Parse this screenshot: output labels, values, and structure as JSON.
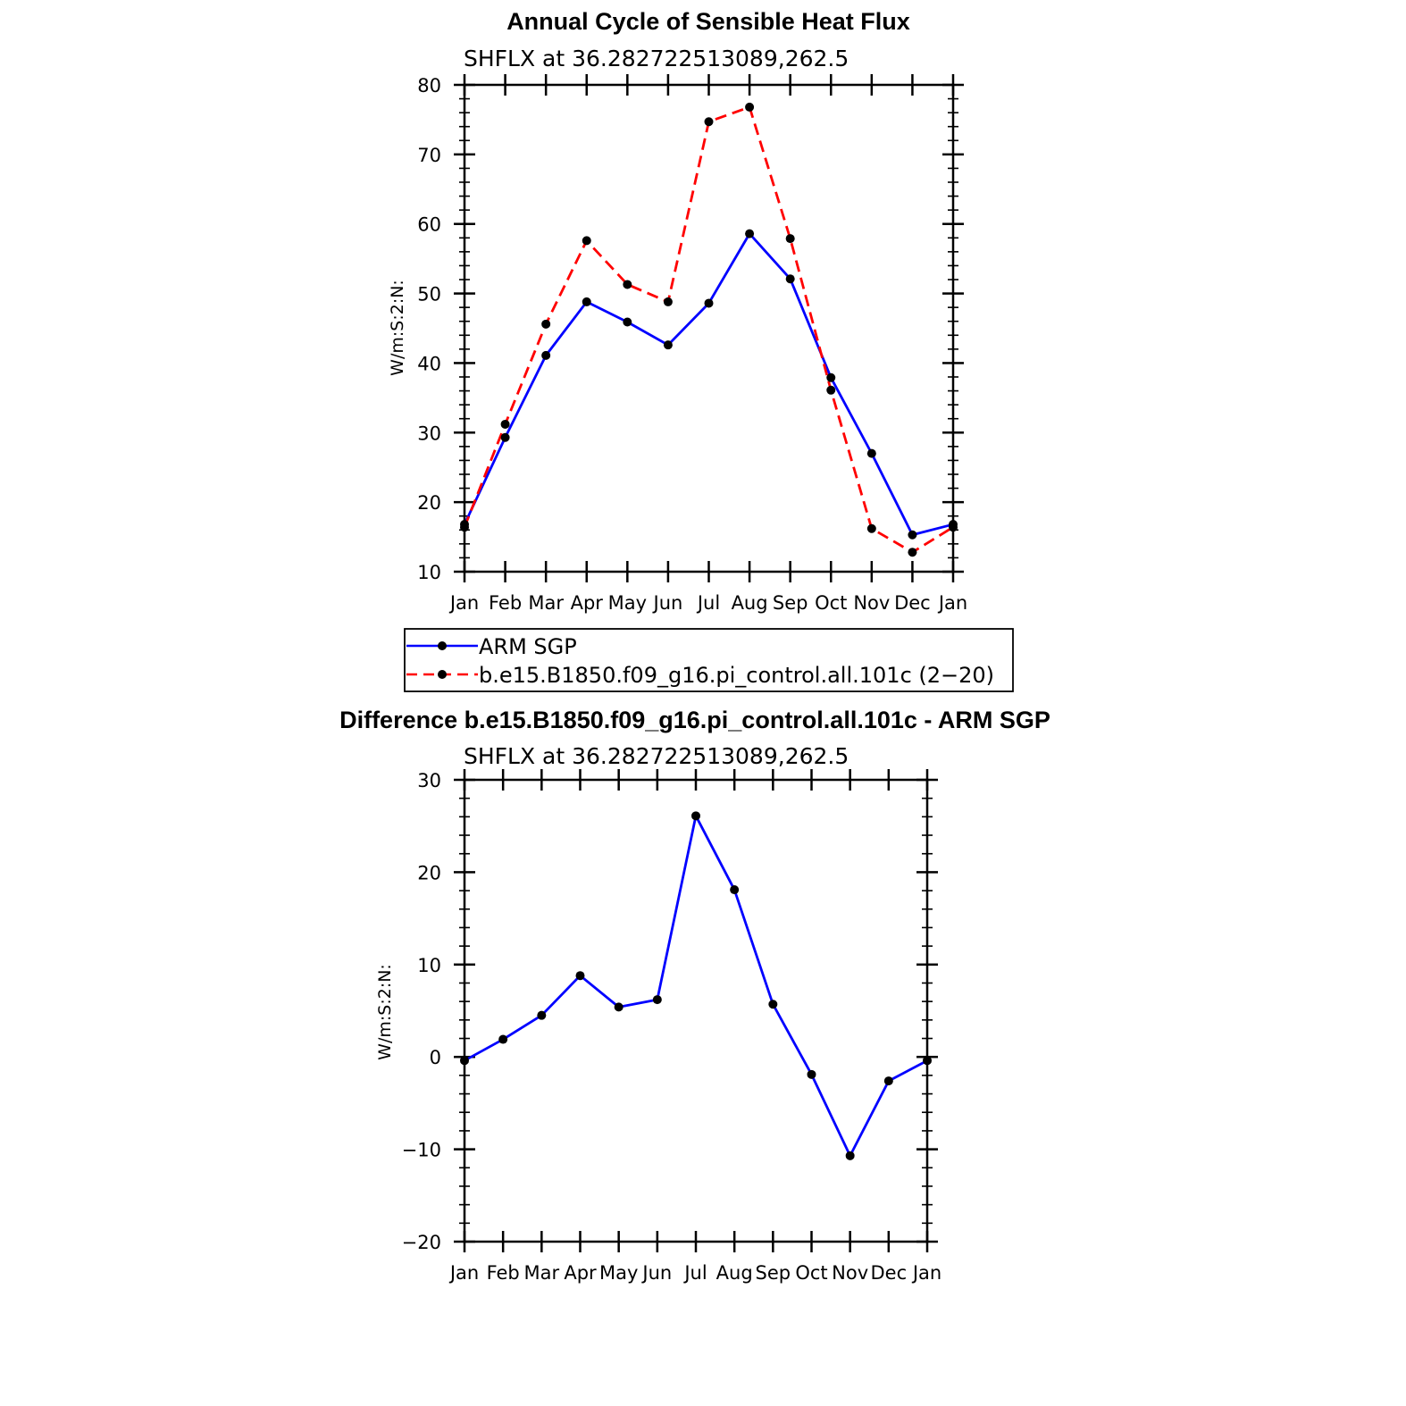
{
  "chart_data": [
    {
      "type": "line",
      "title": "Annual Cycle of Sensible Heat Flux",
      "subtitle": "SHFLX at 36.282722513089,262.5",
      "ylabel": "W/m:S:2:N:",
      "xlabel": "",
      "categories": [
        "Jan",
        "Feb",
        "Mar",
        "Apr",
        "May",
        "Jun",
        "Jul",
        "Aug",
        "Sep",
        "Oct",
        "Nov",
        "Dec",
        "Jan"
      ],
      "yticks": [
        "10",
        "20",
        "30",
        "40",
        "50",
        "60",
        "70",
        "80"
      ],
      "ylim": [
        10,
        80
      ],
      "grid": false,
      "legend_position": "below",
      "series": [
        {
          "name": "ARM SGP",
          "color": "#0000ff",
          "dash": "solid",
          "values": [
            16.8,
            29.3,
            41.1,
            48.8,
            45.9,
            42.6,
            48.6,
            58.6,
            52.1,
            37.9,
            27.0,
            15.3,
            16.8
          ]
        },
        {
          "name": "b.e15.B1850.f09_g16.pi_control.all.101c (2−20)",
          "color": "#ff0000",
          "dash": "dashed",
          "values": [
            16.4,
            31.2,
            45.6,
            57.6,
            51.3,
            48.8,
            74.7,
            76.8,
            57.9,
            36.1,
            16.2,
            12.8,
            16.4
          ]
        }
      ]
    },
    {
      "type": "line",
      "title": "Difference b.e15.B1850.f09_g16.pi_control.all.101c - ARM SGP",
      "subtitle": "SHFLX at 36.282722513089,262.5",
      "ylabel": "W/m:S:2:N:",
      "xlabel": "",
      "categories": [
        "Jan",
        "Feb",
        "Mar",
        "Apr",
        "May",
        "Jun",
        "Jul",
        "Aug",
        "Sep",
        "Oct",
        "Nov",
        "Dec",
        "Jan"
      ],
      "yticks": [
        "−20",
        "−10",
        "0",
        "10",
        "20",
        "30"
      ],
      "ylim": [
        -20,
        30
      ],
      "grid": false,
      "series": [
        {
          "name": "",
          "color": "#0000ff",
          "dash": "solid",
          "values": [
            -0.4,
            1.9,
            4.5,
            8.8,
            5.4,
            6.2,
            26.1,
            18.1,
            5.7,
            -1.9,
            -10.7,
            -2.6,
            -0.4
          ]
        }
      ]
    }
  ]
}
